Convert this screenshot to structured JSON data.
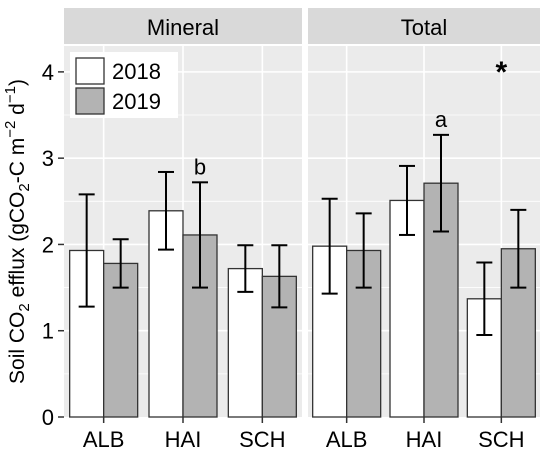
{
  "chart_data": {
    "type": "bar",
    "panels": [
      {
        "title": "Mineral",
        "categories": [
          "ALB",
          "HAI",
          "SCH"
        ],
        "series": [
          {
            "name": "2018",
            "values": [
              1.93,
              2.39,
              1.72
            ],
            "errors": [
              0.65,
              0.45,
              0.27
            ]
          },
          {
            "name": "2019",
            "values": [
              1.78,
              2.11,
              1.63
            ],
            "errors": [
              0.28,
              0.61,
              0.36
            ]
          }
        ],
        "annotations": [
          {
            "category": "HAI",
            "series": "2019",
            "text": "b"
          }
        ]
      },
      {
        "title": "Total",
        "categories": [
          "ALB",
          "HAI",
          "SCH"
        ],
        "series": [
          {
            "name": "2018",
            "values": [
              1.98,
              2.51,
              1.37
            ],
            "errors": [
              0.55,
              0.4,
              0.42
            ]
          },
          {
            "name": "2019",
            "values": [
              1.93,
              2.71,
              1.95
            ],
            "errors": [
              0.43,
              0.56,
              0.45
            ]
          }
        ],
        "annotations": [
          {
            "category": "HAI",
            "series": "2019",
            "text": "a"
          }
        ],
        "marker": "*"
      }
    ],
    "ylabel_parts": [
      "Soil CO",
      "2",
      " efflux (gCO",
      "2",
      "-C m",
      "−2",
      " d",
      "−1",
      ")"
    ],
    "ylim": [
      0,
      4.3
    ],
    "yticks": [
      0,
      1,
      2,
      3,
      4
    ],
    "legend": {
      "position": "top-left",
      "entries": [
        "2018",
        "2019"
      ]
    },
    "grid": true,
    "colors": {
      "2018": "#ffffff",
      "2019": "#b3b3b3",
      "panel_bg": "#ebebeb",
      "strip_bg": "#d9d9d9"
    }
  }
}
